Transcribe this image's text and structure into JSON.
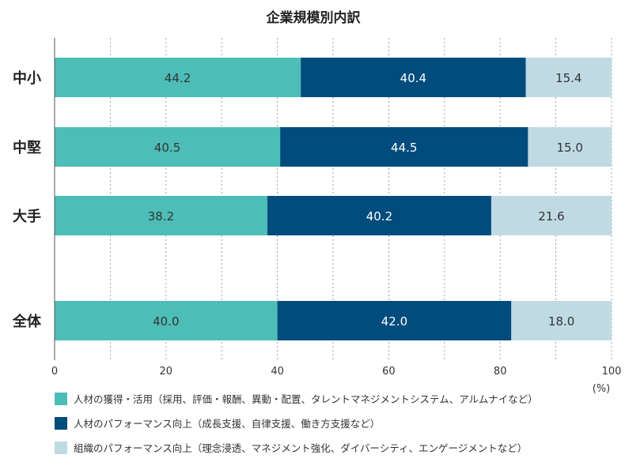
{
  "chart_data": {
    "type": "bar",
    "orientation": "horizontal",
    "stacked": true,
    "title": "企業規模別内訳",
    "categories": [
      "中小",
      "中堅",
      "大手",
      "全体"
    ],
    "series": [
      {
        "name": "人材の獲得・活用（採用、評価・報酬、異動・配置、タレントマネジメントシステム、アルムナイなど）",
        "values": [
          44.2,
          40.5,
          38.2,
          40.0
        ],
        "color": "#4dbdb7"
      },
      {
        "name": "人材のパフォーマンス向上（成長支援、自律支援、働き方支援など）",
        "values": [
          40.4,
          44.5,
          40.2,
          42.0
        ],
        "color": "#004c7c"
      },
      {
        "name": "組織のパフォーマンス向上（理念浸透、マネジメント強化、ダイバーシティ、エンゲージメントなど）",
        "values": [
          15.4,
          15.0,
          21.6,
          18.0
        ],
        "color": "#bfdae3"
      }
    ],
    "xlim": [
      0,
      100
    ],
    "xticks": [
      "0",
      "20",
      "40",
      "60",
      "80",
      "100"
    ],
    "unit_label": "(%)",
    "grid": "vertical dashed",
    "legend_position": "bottom"
  }
}
